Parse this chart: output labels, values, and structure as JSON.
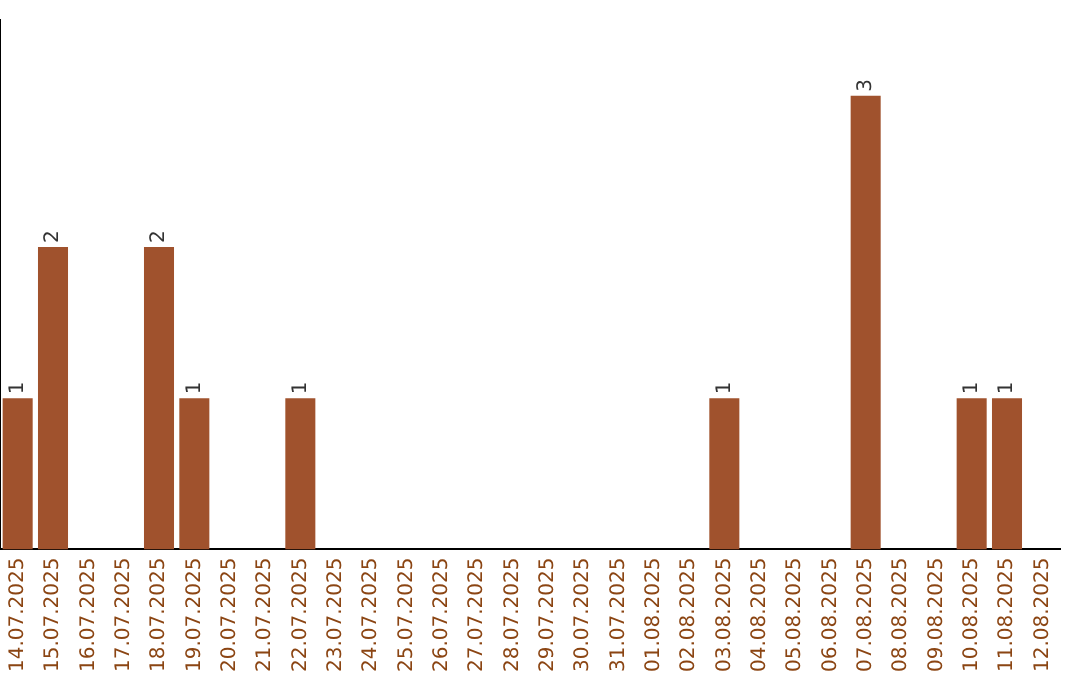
{
  "chart_data": {
    "type": "bar",
    "categories": [
      "14.07.2025",
      "15.07.2025",
      "16.07.2025",
      "17.07.2025",
      "18.07.2025",
      "19.07.2025",
      "20.07.2025",
      "21.07.2025",
      "22.07.2025",
      "23.07.2025",
      "24.07.2025",
      "25.07.2025",
      "26.07.2025",
      "27.07.2025",
      "28.07.2025",
      "29.07.2025",
      "30.07.2025",
      "31.07.2025",
      "01.08.2025",
      "02.08.2025",
      "03.08.2025",
      "04.08.2025",
      "05.08.2025",
      "06.08.2025",
      "07.08.2025",
      "08.08.2025",
      "09.08.2025",
      "10.08.2025",
      "11.08.2025",
      "12.08.2025"
    ],
    "values": [
      1,
      2,
      0,
      0,
      2,
      1,
      0,
      0,
      1,
      0,
      0,
      0,
      0,
      0,
      0,
      0,
      0,
      0,
      0,
      0,
      1,
      0,
      0,
      0,
      3,
      0,
      0,
      1,
      1,
      0
    ],
    "value_labels": [
      "1",
      "2",
      null,
      null,
      "2",
      "1",
      null,
      null,
      "1",
      null,
      null,
      null,
      null,
      null,
      null,
      null,
      null,
      null,
      null,
      null,
      "1",
      null,
      null,
      null,
      "3",
      null,
      null,
      "1",
      "1",
      null
    ],
    "color": "#a0522d",
    "grid": false,
    "legend": false,
    "tick_labels": "x"
  }
}
